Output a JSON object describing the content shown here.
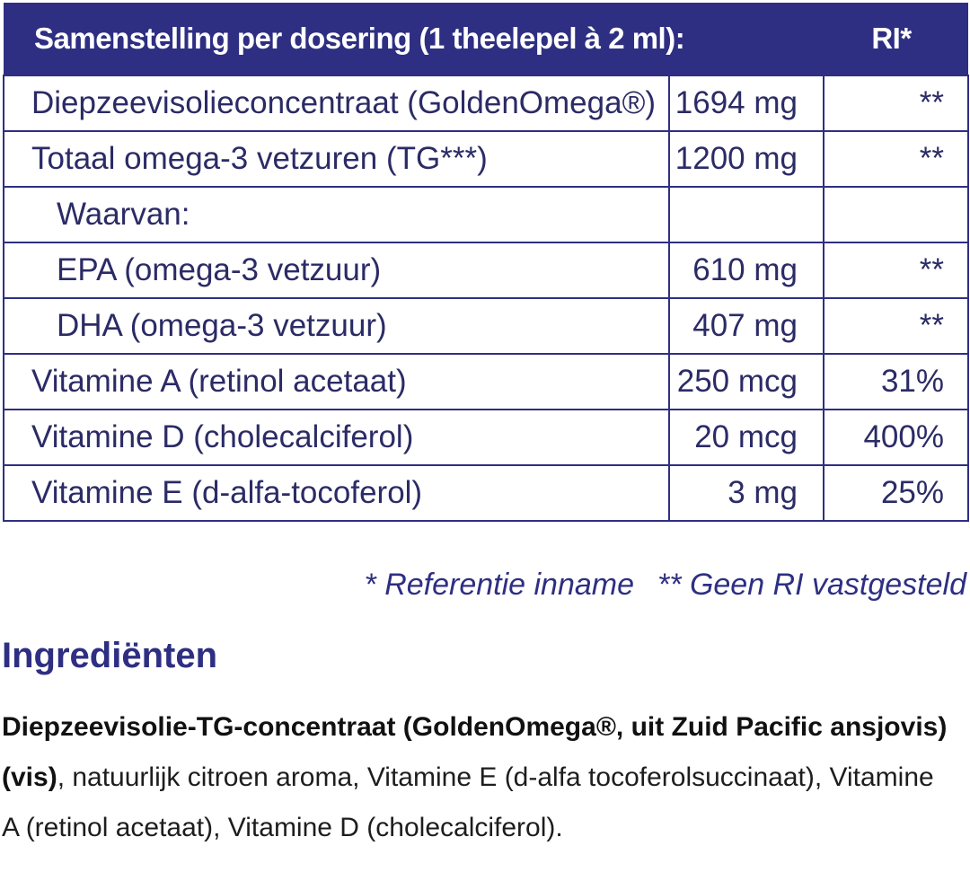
{
  "table": {
    "header": {
      "composition": "Samenstelling per dosering (1 theelepel à 2 ml):",
      "ri": "RI*"
    },
    "rows": [
      {
        "name": "Diepzeevisolieconcentraat (GoldenOmega®)",
        "amount": "1694 mg",
        "ri": "**",
        "indent": false
      },
      {
        "name": "Totaal omega-3 vetzuren (TG***)",
        "amount": "1200 mg",
        "ri": "**",
        "indent": false
      },
      {
        "name": "Waarvan:",
        "amount": "",
        "ri": "",
        "indent": true
      },
      {
        "name": "EPA (omega-3 vetzuur)",
        "amount": "610 mg",
        "ri": "**",
        "indent": true
      },
      {
        "name": "DHA (omega-3 vetzuur)",
        "amount": "407 mg",
        "ri": "**",
        "indent": true
      },
      {
        "name": "Vitamine A (retinol acetaat)",
        "amount": "250 mcg",
        "ri": "31%",
        "indent": false
      },
      {
        "name": "Vitamine D (cholecalciferol)",
        "amount": "20 mcg",
        "ri": "400%",
        "indent": false
      },
      {
        "name": "Vitamine E (d-alfa-tocoferol)",
        "amount": "3 mg",
        "ri": "25%",
        "indent": false
      }
    ]
  },
  "footnotes": {
    "ri_note": "* Referentie inname",
    "no_ri_note": "** Geen RI vastgesteld"
  },
  "ingredients": {
    "title": "Ingrediënten",
    "bold_part": "Diepzeevisolie-TG-concentraat (GoldenOmega®, uit Zuid Pacific ansjovis) (vis)",
    "rest": ", natuurlijk citroen aroma, Vitamine E (d-alfa tocoferolsuccinaat), Vitamine A (retinol acetaat), Vitamine D (cholecalciferol)."
  },
  "colors": {
    "header_bg": "#2e2f82",
    "text": "#2b2b66"
  }
}
